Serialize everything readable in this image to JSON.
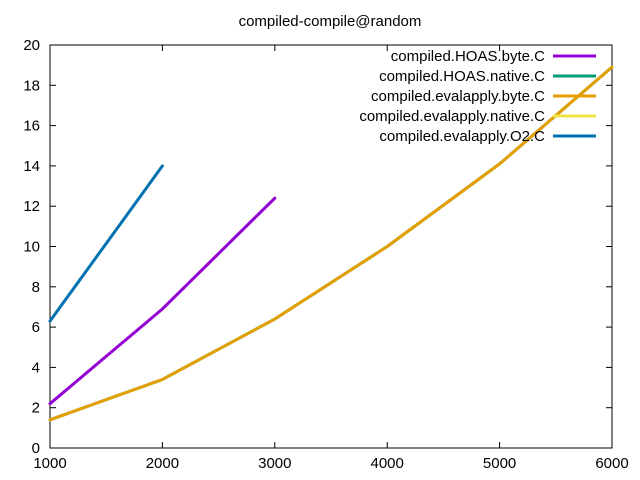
{
  "chart_data": {
    "type": "line",
    "title": "compiled-compile@random",
    "xlabel": "",
    "ylabel": "",
    "xlim": [
      1000,
      6000
    ],
    "ylim": [
      0,
      20
    ],
    "x_ticks": [
      "1000",
      "2000",
      "3000",
      "4000",
      "5000",
      "6000"
    ],
    "y_ticks": [
      "0",
      "2",
      "4",
      "6",
      "8",
      "10",
      "12",
      "14",
      "16",
      "18",
      "20"
    ],
    "grid": false,
    "legend_position": "top-right",
    "series": [
      {
        "name": "compiled.HOAS.byte.C",
        "color": "#9400d3",
        "points": [
          [
            1000,
            2.2
          ],
          [
            2000,
            6.9
          ],
          [
            3000,
            12.4
          ]
        ]
      },
      {
        "name": "compiled.HOAS.native.C",
        "color": "#009e73",
        "points": [
          [
            1000,
            1.4
          ],
          [
            2000,
            3.4
          ],
          [
            3000,
            6.4
          ],
          [
            4000,
            10.0
          ],
          [
            5000,
            14.1
          ],
          [
            6000,
            18.9
          ]
        ]
      },
      {
        "name": "compiled.evalapply.byte.C",
        "color": "#e69f00",
        "points": [
          [
            1000,
            1.4
          ],
          [
            2000,
            3.4
          ],
          [
            3000,
            6.4
          ],
          [
            4000,
            10.0
          ],
          [
            5000,
            14.1
          ],
          [
            6000,
            18.9
          ]
        ]
      },
      {
        "name": "compiled.evalapply.native.C",
        "color": "#f0e442",
        "points": []
      },
      {
        "name": "compiled.evalapply.O2.C",
        "color": "#0072b2",
        "points": [
          [
            1000,
            6.3
          ],
          [
            2000,
            14.0
          ]
        ]
      }
    ]
  }
}
